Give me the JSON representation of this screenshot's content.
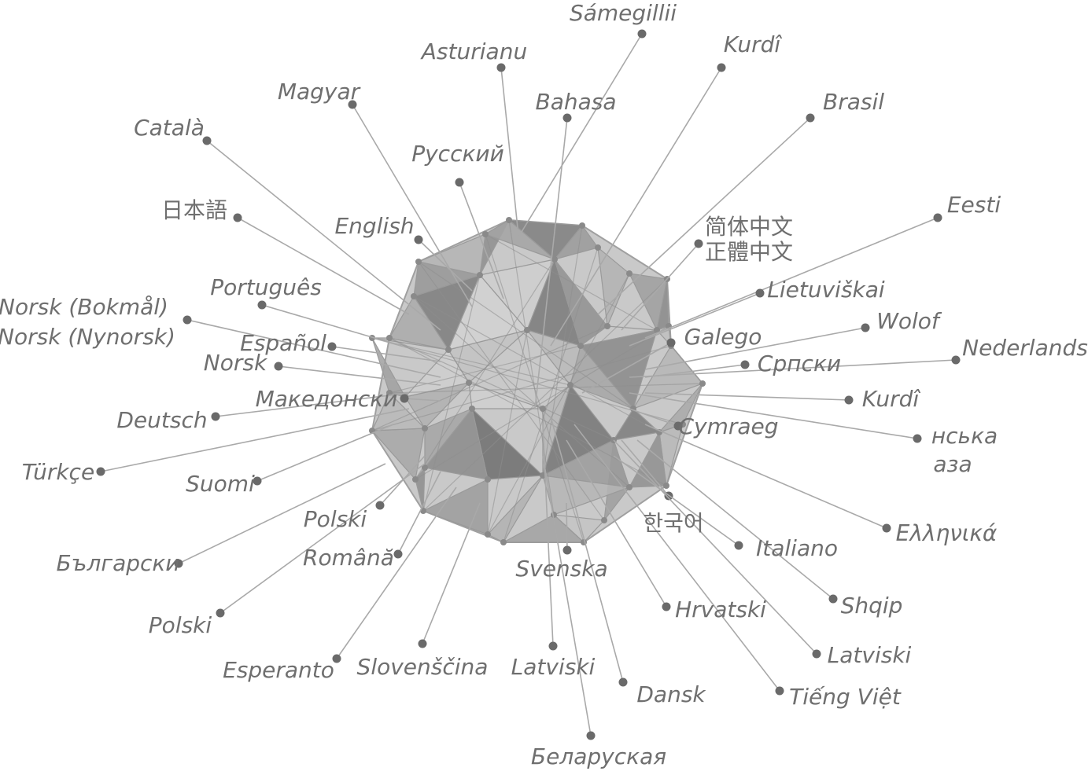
{
  "languages": [
    {
      "id": "samegillii",
      "label": "Sámegillii"
    },
    {
      "id": "asturianu",
      "label": "Asturianu"
    },
    {
      "id": "kurdi-1",
      "label": "Kurdî"
    },
    {
      "id": "magyar",
      "label": "Magyar"
    },
    {
      "id": "bahasa",
      "label": "Bahasa"
    },
    {
      "id": "brasil",
      "label": "Brasil"
    },
    {
      "id": "catala",
      "label": "Català"
    },
    {
      "id": "russkiy",
      "label": "Русский"
    },
    {
      "id": "nihongo",
      "label": "日本語"
    },
    {
      "id": "english",
      "label": "English"
    },
    {
      "id": "eesti",
      "label": "Eesti"
    },
    {
      "id": "zh-simplified",
      "label": "简体中文"
    },
    {
      "id": "zh-traditional",
      "label": "正體中文"
    },
    {
      "id": "portugues",
      "label": "Português"
    },
    {
      "id": "lietuviskai",
      "label": "Lietuviškai"
    },
    {
      "id": "norsk-bokmal",
      "label": "Norsk (Bokmål)"
    },
    {
      "id": "norsk-nynorsk",
      "label": "Norsk (Nynorsk)"
    },
    {
      "id": "wolof",
      "label": "Wolof"
    },
    {
      "id": "espanol",
      "label": "Español"
    },
    {
      "id": "galego",
      "label": "Galego"
    },
    {
      "id": "nederlands",
      "label": "Nederlands"
    },
    {
      "id": "norsk",
      "label": "Norsk"
    },
    {
      "id": "srpski",
      "label": "Српски"
    },
    {
      "id": "makedonski",
      "label": "Македонски"
    },
    {
      "id": "kurdi-2",
      "label": "Kurdî"
    },
    {
      "id": "deutsch",
      "label": "Deutsch"
    },
    {
      "id": "cymraeg",
      "label": "Cymraeg"
    },
    {
      "id": "nska-line1",
      "label": "нська"
    },
    {
      "id": "nska-line2",
      "label": "аза"
    },
    {
      "id": "turkce",
      "label": "Türkçe"
    },
    {
      "id": "suomi",
      "label": "Suomi"
    },
    {
      "id": "polski-1",
      "label": "Polski"
    },
    {
      "id": "korean",
      "label": "한국어"
    },
    {
      "id": "ellinika",
      "label": "Ελληνικά"
    },
    {
      "id": "romana",
      "label": "Română"
    },
    {
      "id": "italiano",
      "label": "Italiano"
    },
    {
      "id": "bulgarski",
      "label": "Български"
    },
    {
      "id": "svenska",
      "label": "Svenska"
    },
    {
      "id": "shqip",
      "label": "Shqip"
    },
    {
      "id": "hrvatski",
      "label": "Hrvatski"
    },
    {
      "id": "polski-2",
      "label": "Polski"
    },
    {
      "id": "latviski-1",
      "label": "Latviski"
    },
    {
      "id": "esperanto",
      "label": "Esperanto"
    },
    {
      "id": "slovenscina",
      "label": "Slovenščina"
    },
    {
      "id": "latviski-2",
      "label": "Latviski"
    },
    {
      "id": "dansk",
      "label": "Dansk"
    },
    {
      "id": "tieng-viet",
      "label": "Tiếng Việt"
    },
    {
      "id": "belaruskaya",
      "label": "Беларуская"
    }
  ]
}
